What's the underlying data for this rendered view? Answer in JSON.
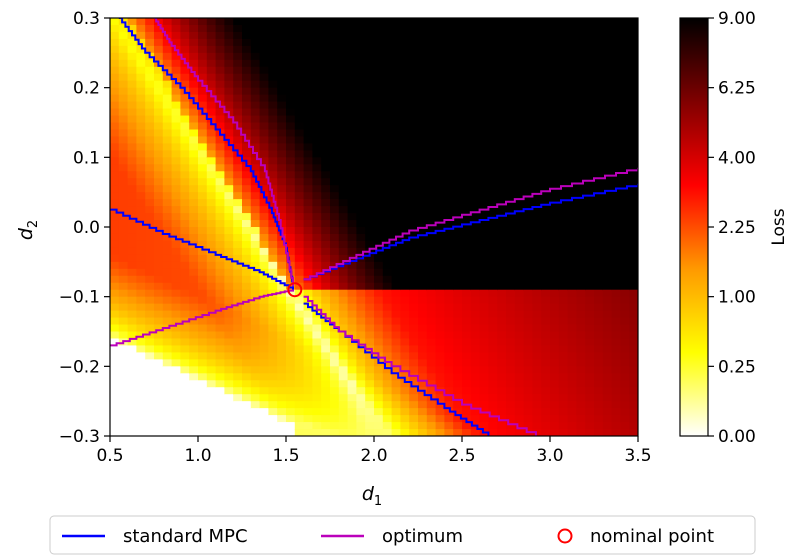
{
  "chart_data": {
    "type": "heatmap",
    "title": "",
    "xlabel": "d",
    "xlabel_sub": "1",
    "ylabel": "d",
    "ylabel_sub": "2",
    "xlim": [
      0.5,
      3.5
    ],
    "ylim": [
      -0.3,
      0.3
    ],
    "xticks": [
      "0.5",
      "1.0",
      "1.5",
      "2.0",
      "2.5",
      "3.0",
      "3.5"
    ],
    "yticks": [
      "0.3",
      "0.2",
      "0.1",
      "0.0",
      "−0.1",
      "−0.2",
      "−0.3"
    ],
    "grid": false,
    "colorbar": {
      "label": "Loss",
      "scale": "sqrt",
      "range": [
        0,
        9
      ],
      "ticks": [
        "9.00",
        "6.25",
        "4.00",
        "2.25",
        "1.00",
        "0.25",
        "0.00"
      ],
      "colormap": "hot_r",
      "colors": [
        "#ffffff",
        "#ffff00",
        "#ff9900",
        "#ff0000",
        "#800000",
        "#000000"
      ]
    },
    "series": [
      {
        "name": "standard MPC",
        "color": "#0000ff",
        "curves": [
          {
            "x": [
              0.55,
              0.7,
              0.9,
              1.1,
              1.3,
              1.42,
              1.5,
              1.54
            ],
            "y": [
              0.3,
              0.25,
              0.2,
              0.14,
              0.08,
              0.02,
              -0.03,
              -0.085
            ]
          },
          {
            "x": [
              0.5,
              0.8,
              1.1,
              1.35,
              1.54
            ],
            "y": [
              0.025,
              -0.01,
              -0.04,
              -0.065,
              -0.09
            ]
          },
          {
            "x": [
              1.6,
              1.9,
              2.2,
              2.6,
              3.0,
              3.5
            ],
            "y": [
              -0.075,
              -0.045,
              -0.015,
              0.01,
              0.035,
              0.062
            ]
          },
          {
            "x": [
              1.6,
              1.8,
              2.1,
              2.4,
              2.65
            ],
            "y": [
              -0.11,
              -0.15,
              -0.21,
              -0.26,
              -0.3
            ]
          }
        ]
      },
      {
        "name": "optimum",
        "color": "#bb00bb",
        "curves": [
          {
            "x": [
              0.75,
              0.85,
              1.0,
              1.2,
              1.38,
              1.46,
              1.54
            ],
            "y": [
              0.3,
              0.26,
              0.21,
              0.15,
              0.08,
              0.01,
              -0.085
            ]
          },
          {
            "x": [
              0.5,
              0.8,
              1.1,
              1.35,
              1.54
            ],
            "y": [
              -0.17,
              -0.145,
              -0.12,
              -0.1,
              -0.09
            ]
          },
          {
            "x": [
              1.6,
              1.9,
              2.2,
              2.6,
              3.0,
              3.5
            ],
            "y": [
              -0.075,
              -0.04,
              -0.005,
              0.025,
              0.055,
              0.085
            ]
          },
          {
            "x": [
              1.6,
              1.8,
              2.1,
              2.5,
              2.92
            ],
            "y": [
              -0.1,
              -0.15,
              -0.2,
              -0.255,
              -0.3
            ]
          }
        ]
      }
    ],
    "marker": {
      "name": "nominal point",
      "x": 1.55,
      "y": -0.09,
      "color": "#ff0000"
    },
    "legend": {
      "placement": "bottom",
      "entries": [
        {
          "label": "standard MPC",
          "kind": "line",
          "color": "#0000ff"
        },
        {
          "label": "optimum",
          "kind": "line",
          "color": "#bb00bb"
        },
        {
          "label": "nominal point",
          "kind": "circle",
          "color": "#ff0000"
        }
      ]
    }
  }
}
